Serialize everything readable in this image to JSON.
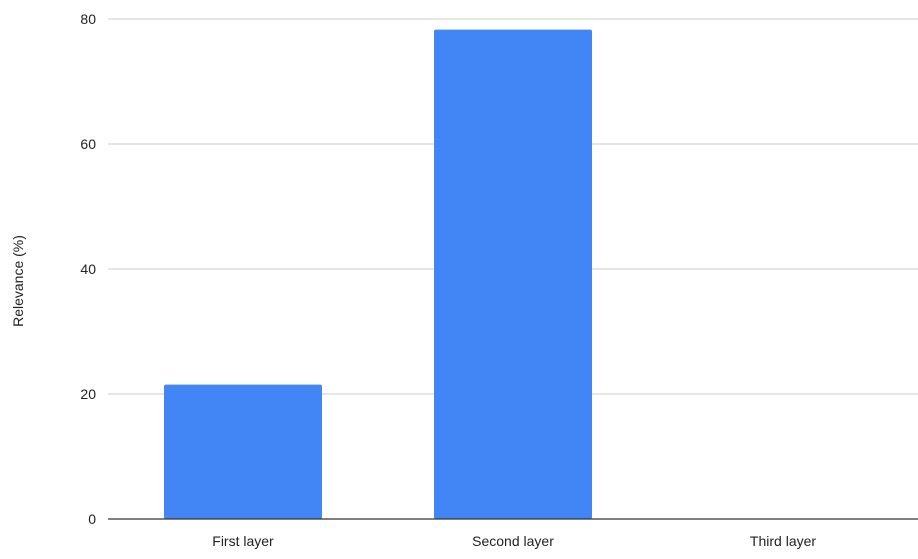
{
  "chart_data": {
    "type": "bar",
    "title": "",
    "xlabel": "",
    "ylabel": "Relevance (%)",
    "categories": [
      "First layer",
      "Second layer",
      "Third layer"
    ],
    "values": [
      21.5,
      78.3,
      0
    ],
    "ylim": [
      0,
      80
    ],
    "yticks": [
      "0",
      "20",
      "40",
      "60",
      "80"
    ],
    "grid": true,
    "legend": "none",
    "colors": {
      "bar": "#4285f4",
      "grid": "#cccccc",
      "axis": "#333333",
      "text": "#222222"
    }
  }
}
